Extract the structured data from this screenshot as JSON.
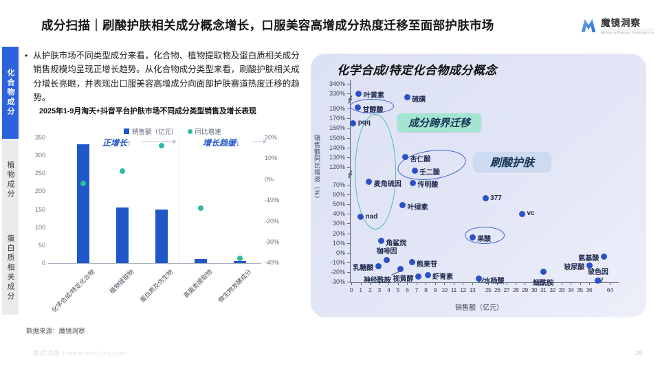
{
  "header": {
    "title": "成分扫描｜刷酸护肤相关成分概念增长，口服美容高增成分热度迁移至面部护肤市场",
    "logo": {
      "brand": "魔镜洞察",
      "subtitle": "Moojing Market Intelligence",
      "icon": "logo-m-icon"
    }
  },
  "sidebar": {
    "items": [
      {
        "label": "化合物成分",
        "active": true
      },
      {
        "label": "植物成分",
        "active": false
      },
      {
        "label": "蛋白质相关成分",
        "active": false
      }
    ]
  },
  "summary": {
    "bullet": "从护肤市场不同类型成分来看，化合物、植物提取物及蛋白质相关成分销售规模均呈现正增长趋势。从化合物成分类型来看，刷酸护肤相关成分增长亮眼，并表现出口服美容高增成分向面部护肤赛道热度迁移的趋势。"
  },
  "colors": {
    "bar": "#2158c9",
    "growth_dot": "#2db9a2",
    "annotation_blue": "#2456c8",
    "scatter_dot": "#2d50c8",
    "panel_bg": "#dee3f5",
    "badge_migration_bg": "#a3e5d0",
    "badge_acid_bg": "#ccdbf1",
    "sidebar_active_bg": "#2c63dd",
    "sidebar_inactive_bg": "#ebebee",
    "ellipse_blue": "#3a5fd0",
    "ellipse_teal": "#45bba6"
  },
  "chart_data": [
    {
      "type": "bar",
      "title": "2025年1-9月淘天+抖音平台护肤市场不同成分类型销售及增长表现",
      "categories": [
        "化学合成/特定化合物",
        "植物提取物",
        "蛋白质及仿生物",
        "真菌类提取物",
        "微生物发酵成分"
      ],
      "series": [
        {
          "name": "销售额（亿元）",
          "type": "bar",
          "values": [
            330,
            155,
            150,
            12,
            6
          ]
        },
        {
          "name": "同比增速",
          "type": "point",
          "values_pct": [
            -2,
            4,
            16,
            -14,
            -38
          ]
        }
      ],
      "ylim_left": [
        0,
        350
      ],
      "yticks_left": [
        350,
        300,
        250,
        200,
        150,
        100,
        50,
        0
      ],
      "yticks_right_pct": [
        20,
        10,
        0,
        -10,
        -20,
        -30,
        -40
      ],
      "annotations": {
        "positive": "正增长↑",
        "slowing": "增长趋缓↓"
      },
      "legend_position": "top"
    },
    {
      "type": "scatter",
      "title": "化学合成/特定化合物成分概念",
      "xlabel": "销售额（亿元）",
      "ylabel": "销售额同比增速（%）",
      "x_ticks": [
        0,
        1,
        2,
        3,
        4,
        5,
        6,
        7,
        8,
        9,
        10,
        11,
        12,
        13,
        25,
        26,
        27,
        28,
        29,
        30,
        31,
        32,
        33,
        34,
        35,
        36,
        64
      ],
      "y_ticks_pct": [
        340,
        330,
        180,
        170,
        160,
        150,
        140,
        130,
        120,
        70,
        60,
        50,
        40,
        30,
        20,
        10,
        0,
        -10,
        -20,
        -30
      ],
      "axis_breaks": {
        "x_between": [
          [
            13,
            25
          ],
          [
            36,
            64
          ]
        ],
        "y_between_pct": [
          [
            330,
            180
          ],
          [
            120,
            70
          ]
        ]
      },
      "points": [
        {
          "label": "叶黄素",
          "x": 0.8,
          "y": 330,
          "pos": "r"
        },
        {
          "label": "硫磺",
          "x": 6.0,
          "y": 290,
          "pos": "r"
        },
        {
          "label": "甘醇酸",
          "x": 0.7,
          "y": 190,
          "pos": "r"
        },
        {
          "label": "pqq",
          "x": 0.2,
          "y": 165,
          "pos": "r"
        },
        {
          "label": "杏仁酸",
          "x": 5.8,
          "y": 130,
          "pos": "r"
        },
        {
          "label": "壬二酸",
          "x": 6.8,
          "y": 110,
          "pos": "r"
        },
        {
          "label": "麦角硫因",
          "x": 1.9,
          "y": 78,
          "pos": "r"
        },
        {
          "label": "传明酸",
          "x": 6.6,
          "y": 75,
          "pos": "r"
        },
        {
          "label": "叶绿素",
          "x": 5.5,
          "y": 49,
          "pos": "r"
        },
        {
          "label": "nad",
          "x": 1.0,
          "y": 37,
          "pos": "r"
        },
        {
          "label": "377",
          "x": 23,
          "y": 56,
          "pos": "r"
        },
        {
          "label": "vc",
          "x": 28.7,
          "y": 40,
          "pos": "r"
        },
        {
          "label": "果酸",
          "x": 13.1,
          "y": 16,
          "pos": "r"
        },
        {
          "label": "角鲨烷",
          "x": 3.2,
          "y": 12,
          "pos": "r"
        },
        {
          "label": "咖啡因",
          "x": 3.8,
          "y": -8,
          "pos": "t"
        },
        {
          "label": "乳糖酸",
          "x": 2.9,
          "y": -14,
          "pos": "l"
        },
        {
          "label": "神经酰胺",
          "x": 5.3,
          "y": -17,
          "pos": "bl",
          "leader": true
        },
        {
          "label": "熊果苷",
          "x": 6.5,
          "y": -10,
          "pos": "r"
        },
        {
          "label": "视黄醇",
          "x": 7.2,
          "y": -25,
          "pos": "l"
        },
        {
          "label": "虾青素",
          "x": 8.2,
          "y": -23,
          "pos": "r"
        },
        {
          "label": "水杨酸",
          "x": 18,
          "y": -27,
          "pos": "r"
        },
        {
          "label": "烟酰胺",
          "x": 31,
          "y": -20,
          "pos": "b"
        },
        {
          "label": "玻尿酸",
          "x": 36.2,
          "y": -13,
          "pos": "l"
        },
        {
          "label": "氨基酸",
          "x": 56,
          "y": -4,
          "pos": "l"
        },
        {
          "label": "玻色因",
          "x": 48,
          "y": -29,
          "pos": "t"
        }
      ],
      "badges": [
        "成分跨界迁移",
        "刷酸护肤"
      ],
      "ellipse_groups": [
        [
          "甘醇酸"
        ],
        [
          "pqq",
          "麦角硫因",
          "nad"
        ],
        [
          "杏仁酸",
          "壬二酸"
        ],
        [
          "果酸"
        ]
      ],
      "legend_position": "none",
      "grid": false
    }
  ],
  "footer": {
    "source": "数据来源：魔镜洞察",
    "watermark": "魔镜洞察 | www.moojing.com",
    "page": "26"
  }
}
